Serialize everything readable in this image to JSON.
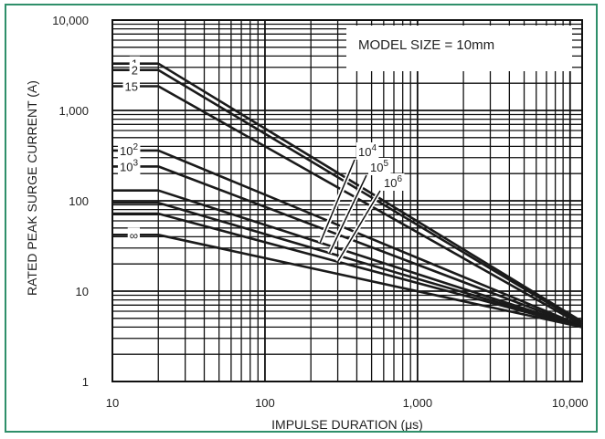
{
  "chart_data": {
    "type": "line",
    "title": "",
    "xlabel": "IMPULSE DURATION (μs)",
    "ylabel": "RATED PEAK SURGE CURRENT (A)",
    "x_scale": "log",
    "y_scale": "log",
    "xlim": [
      10,
      12000
    ],
    "ylim": [
      1,
      10000
    ],
    "x_ticks": [
      10,
      100,
      1000,
      10000
    ],
    "x_tick_labels": [
      "10",
      "100",
      "1,000",
      "10,000"
    ],
    "y_ticks": [
      1,
      10,
      100,
      1000,
      10000
    ],
    "y_tick_labels": [
      "1",
      "10",
      "100",
      "1,000",
      "10,000"
    ],
    "grid": true,
    "annotation": "MODEL SIZE = 10mm",
    "series": [
      {
        "name": "1",
        "label_base": "1",
        "label_exp": "",
        "x": [
          10,
          20,
          12000
        ],
        "y": [
          3300,
          3300,
          4.6
        ]
      },
      {
        "name": "2",
        "label_base": "2",
        "label_exp": "",
        "x": [
          10,
          20,
          12000
        ],
        "y": [
          2800,
          2800,
          4.4
        ]
      },
      {
        "name": "15",
        "label_base": "15",
        "label_exp": "",
        "x": [
          10,
          20,
          12000
        ],
        "y": [
          1850,
          1850,
          4.2
        ]
      },
      {
        "name": "10^2",
        "label_base": "10",
        "label_exp": "2",
        "x": [
          10,
          20,
          12000
        ],
        "y": [
          360,
          360,
          4.1
        ]
      },
      {
        "name": "10^3",
        "label_base": "10",
        "label_exp": "3",
        "x": [
          10,
          20,
          12000
        ],
        "y": [
          240,
          240,
          4.0
        ]
      },
      {
        "name": "10^4",
        "label_base": "10",
        "label_exp": "4",
        "x": [
          10,
          20,
          12000
        ],
        "y": [
          130,
          130,
          4.0
        ]
      },
      {
        "name": "10^5",
        "label_base": "10",
        "label_exp": "5",
        "x": [
          10,
          20,
          12000
        ],
        "y": [
          95,
          95,
          4.0
        ]
      },
      {
        "name": "10^6",
        "label_base": "10",
        "label_exp": "6",
        "x": [
          10,
          20,
          12000
        ],
        "y": [
          72,
          72,
          4.0
        ]
      },
      {
        "name": "∞",
        "label_base": "∞",
        "label_exp": "",
        "x": [
          10,
          20,
          12000
        ],
        "y": [
          42,
          42,
          4.0
        ]
      }
    ]
  },
  "colors": {
    "frame": "#2f8f6a",
    "grid": "#111111",
    "lines": "#1a1a1a"
  }
}
